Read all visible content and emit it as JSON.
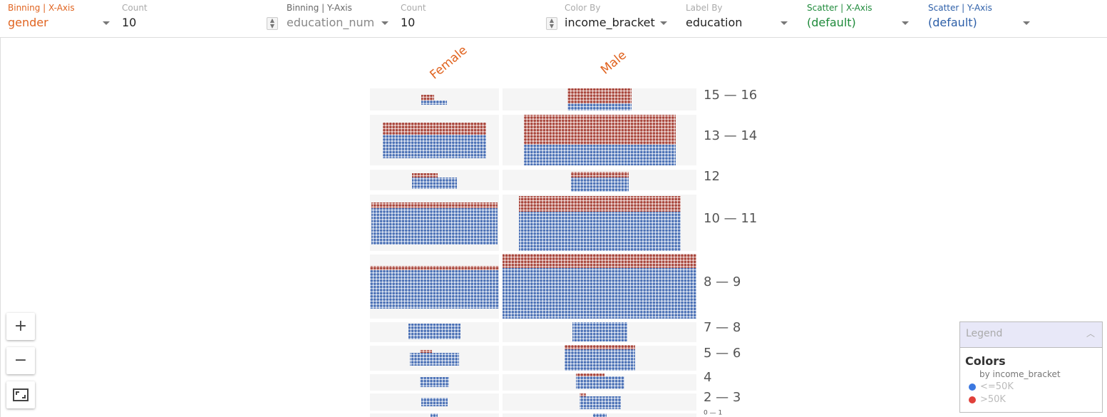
{
  "controls": [
    {
      "label": "Binning | X-Axis",
      "value": "gender"
    },
    {
      "label": "Count",
      "value": "10"
    },
    {
      "label": "Binning | Y-Axis",
      "value": "education_num"
    },
    {
      "label": "Count",
      "value": "10"
    },
    {
      "label": "Color By",
      "value": "income_bracket"
    },
    {
      "label": "Label By",
      "value": "education"
    },
    {
      "label": "Scatter | X-Axis",
      "value": "(default)"
    },
    {
      "label": "Scatter | Y-Axis",
      "value": "(default)"
    }
  ],
  "columns": [
    "Female",
    "Male"
  ],
  "rows": [
    "15 — 16",
    "13 — 14",
    "12",
    "10 — 11",
    "8 — 9",
    "7 — 8",
    "5 — 6",
    "4",
    "2 — 3",
    "0 — 1"
  ],
  "zoom_buttons": [
    "+",
    "−"
  ],
  "legend": {
    "title": "Legend",
    "section": "Colors",
    "subtitle": "by income_bracket",
    "items": [
      {
        "label": "<=50K",
        "color": "#3b78e0"
      },
      {
        "label": ">50K",
        "color": "#e0403a"
      }
    ]
  }
}
